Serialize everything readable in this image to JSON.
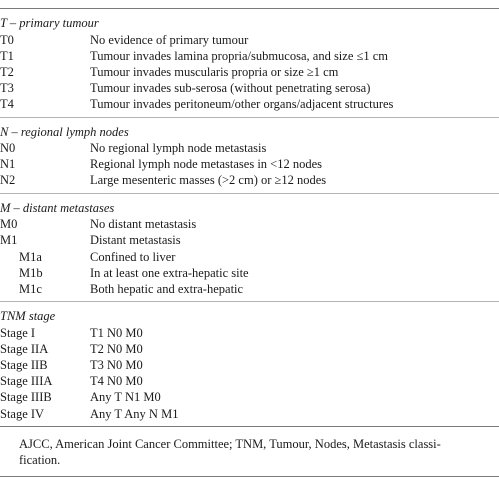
{
  "sections": [
    {
      "title": "T – primary tumour",
      "rows": [
        {
          "code": "T0",
          "desc": "No evidence of primary tumour"
        },
        {
          "code": "T1",
          "desc": "Tumour invades lamina propria/submucosa, and size ≤1 cm"
        },
        {
          "code": "T2",
          "desc": "Tumour invades muscularis propria or size ≥1 cm"
        },
        {
          "code": "T3",
          "desc": "Tumour invades sub-serosa (without penetrating serosa)"
        },
        {
          "code": "T4",
          "desc": "Tumour invades peritoneum/other organs/adjacent structures"
        }
      ]
    },
    {
      "title": "N – regional lymph nodes",
      "rows": [
        {
          "code": "N0",
          "desc": "No regional lymph node metastasis"
        },
        {
          "code": "N1",
          "desc": "Regional lymph node metastases in <12 nodes"
        },
        {
          "code": "N2",
          "desc": "Large mesenteric masses (>2 cm) or ≥12 nodes"
        }
      ]
    },
    {
      "title": "M – distant metastases",
      "rows": [
        {
          "code": "M0",
          "desc": "No distant metastasis"
        },
        {
          "code": "M1",
          "desc": "Distant metastasis"
        },
        {
          "code": "M1a",
          "desc": "Confined to liver"
        },
        {
          "code": "M1b",
          "desc": "In at least one extra-hepatic site"
        },
        {
          "code": "M1c",
          "desc": "Both hepatic and extra-hepatic"
        }
      ]
    },
    {
      "title": "TNM stage",
      "rows": [
        {
          "code": "Stage I",
          "desc": "T1 N0 M0"
        },
        {
          "code": "Stage IIA",
          "desc": "T2 N0 M0"
        },
        {
          "code": "Stage IIB",
          "desc": "T3 N0 M0"
        },
        {
          "code": "Stage IIIA",
          "desc": "T4 N0 M0"
        },
        {
          "code": "Stage IIIB",
          "desc": "Any T N1 M0"
        },
        {
          "code": "Stage IV",
          "desc": "Any T Any N M1"
        }
      ]
    }
  ],
  "footnote": {
    "line1": "AJCC, American Joint Cancer Committee; TNM, Tumour, Nodes, Metastasis classi-",
    "line2": "fication."
  }
}
